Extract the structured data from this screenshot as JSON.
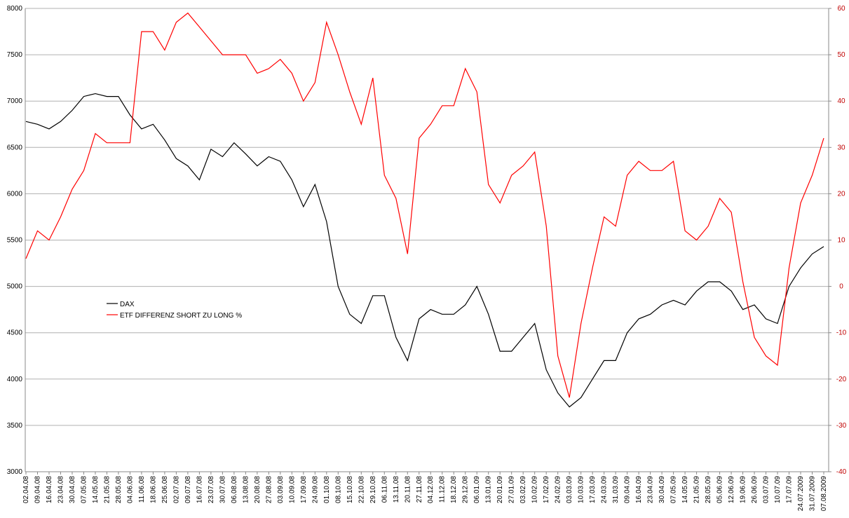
{
  "chart_data": {
    "type": "line",
    "categories": [
      "02.04.08",
      "09.04.08",
      "16.04.08",
      "23.04.08",
      "30.04.08",
      "07.05.08",
      "14.05.08",
      "21.05.08",
      "28.05.08",
      "04.06.08",
      "11.06.08",
      "18.06.08",
      "25.06.08",
      "02.07.08",
      "09.07.08",
      "16.07.08",
      "23.07.08",
      "30.07.08",
      "06.08.08",
      "13.08.08",
      "20.08.08",
      "27.08.08",
      "03.09.08",
      "10.09.08",
      "17.09.08",
      "24.09.08",
      "01.10.08",
      "08.10.08",
      "15.10.08",
      "22.10.08",
      "29.10.08",
      "06.11.08",
      "13.11.08",
      "20.11.08",
      "27.11.08",
      "04.12.08",
      "11.12.08",
      "18.12.08",
      "29.12.08",
      "06.01.09",
      "13.01.09",
      "20.01.09",
      "27.01.09",
      "03.02.09",
      "10.02.09",
      "17.02.09",
      "24.02.09",
      "03.03.09",
      "10.03.09",
      "17.03.09",
      "24.03.09",
      "31.03.09",
      "09.04.09",
      "16.04.09",
      "23.04.09",
      "30.04.09",
      "07.05.09",
      "14.05.09",
      "21.05.09",
      "28.05.09",
      "05.06.09",
      "12.06.09",
      "19.06.09",
      "26.06.09",
      "03.07.09",
      "10.07.09",
      "17.07.09",
      "24.07.2009",
      "31.07.2009",
      "07.08.2009"
    ],
    "series": [
      {
        "name": "DAX",
        "color": "#000000",
        "axis": "y",
        "values": [
          6780,
          6750,
          6700,
          6780,
          6900,
          7050,
          7080,
          7050,
          7050,
          6850,
          6700,
          6750,
          6580,
          6380,
          6300,
          6150,
          6480,
          6400,
          6550,
          6430,
          6300,
          6400,
          6350,
          6150,
          5860,
          6100,
          5700,
          5000,
          4700,
          4600,
          4900,
          4900,
          4450,
          4200,
          4650,
          4750,
          4700,
          4700,
          4800,
          5000,
          4700,
          4300,
          4300,
          4450,
          4600,
          4100,
          3850,
          3700,
          3800,
          4000,
          4200,
          4200,
          4500,
          4650,
          4700,
          4800,
          4850,
          4800,
          4950,
          5050,
          5050,
          4950,
          4750,
          4800,
          4650,
          4600,
          5000,
          5200,
          5350,
          5430
        ]
      },
      {
        "name": "ETF DIFFERENZ SHORT ZU LONG %",
        "color": "#ff0000",
        "axis": "y2",
        "values": [
          6,
          12,
          10,
          15,
          21,
          25,
          33,
          31,
          31,
          31,
          55,
          55,
          51,
          57,
          59,
          56,
          53,
          50,
          50,
          50,
          46,
          47,
          49,
          46,
          40,
          44,
          57,
          50,
          42,
          35,
          45,
          24,
          19,
          7,
          32,
          35,
          39,
          39,
          47,
          42,
          22,
          18,
          24,
          26,
          29,
          13,
          -15,
          -24,
          -8,
          4,
          15,
          13,
          24,
          27,
          25,
          25,
          27,
          12,
          10,
          13,
          19,
          16,
          1,
          -11,
          -15,
          -17,
          4,
          18,
          24,
          32
        ]
      }
    ],
    "ylim": [
      3000,
      8000
    ],
    "yticks": [
      3000,
      3500,
      4000,
      4500,
      5000,
      5500,
      6000,
      6500,
      7000,
      7500,
      8000
    ],
    "y2lim": [
      -40,
      60
    ],
    "y2ticks": [
      -40,
      -30,
      -20,
      -10,
      0,
      10,
      20,
      30,
      40,
      50,
      60
    ],
    "grid": true
  }
}
